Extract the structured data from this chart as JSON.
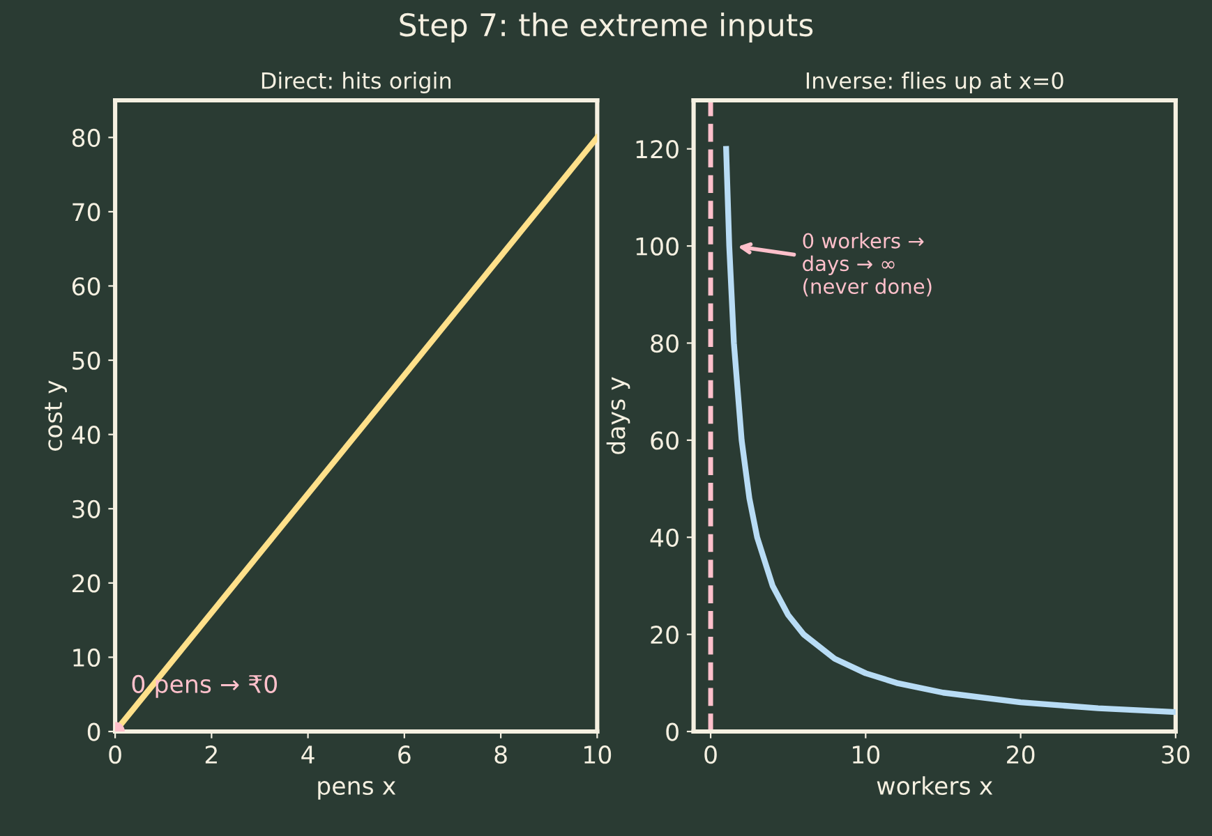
{
  "chart_data": [
    {
      "type": "line",
      "title": "Direct: hits origin",
      "xlabel": "pens x",
      "ylabel": "cost y",
      "xlim": [
        0,
        10
      ],
      "ylim": [
        0,
        85
      ],
      "xticks": [
        0,
        2,
        4,
        6,
        8,
        10
      ],
      "yticks": [
        0,
        10,
        20,
        30,
        40,
        50,
        60,
        70,
        80
      ],
      "grid": false,
      "series": [
        {
          "color": "#ffe08a",
          "x": [
            0,
            10
          ],
          "values": [
            0,
            80
          ]
        },
        {
          "type": "scatter",
          "color": "#ffc0cb",
          "x": [
            0
          ],
          "values": [
            0
          ]
        }
      ],
      "annotations": [
        "Step 7: the extreme inputs",
        {
          "text": "0 pens → ₹0",
          "x": 0,
          "y": 0
        }
      ]
    },
    {
      "type": "line",
      "title": "Inverse: flies up at x=0",
      "xlabel": "workers x",
      "ylabel": "days y",
      "xlim": [
        -1.1,
        30
      ],
      "ylim": [
        0,
        130
      ],
      "xticks": [
        0,
        10,
        20,
        30
      ],
      "yticks": [
        0,
        20,
        40,
        60,
        80,
        100,
        120
      ],
      "grid": false,
      "series": [
        {
          "color": "#b8dcf5",
          "x": [
            1,
            1.2,
            1.5,
            2,
            2.5,
            3,
            4,
            5,
            6,
            8,
            10,
            12,
            15,
            20,
            25,
            30
          ],
          "values": [
            120,
            100,
            80,
            60,
            48,
            40,
            30,
            24,
            20,
            15,
            12,
            10,
            8,
            6,
            4.8,
            4
          ]
        }
      ],
      "ref_lines": [
        {
          "axis": "x",
          "value": 0,
          "color": "#ffc0cb",
          "line_style": "dashed"
        }
      ],
      "annotations": [
        {
          "text": "0 workers →\ndays → ∞\n(never done)",
          "x": 1.5,
          "y": 100
        }
      ]
    }
  ]
}
